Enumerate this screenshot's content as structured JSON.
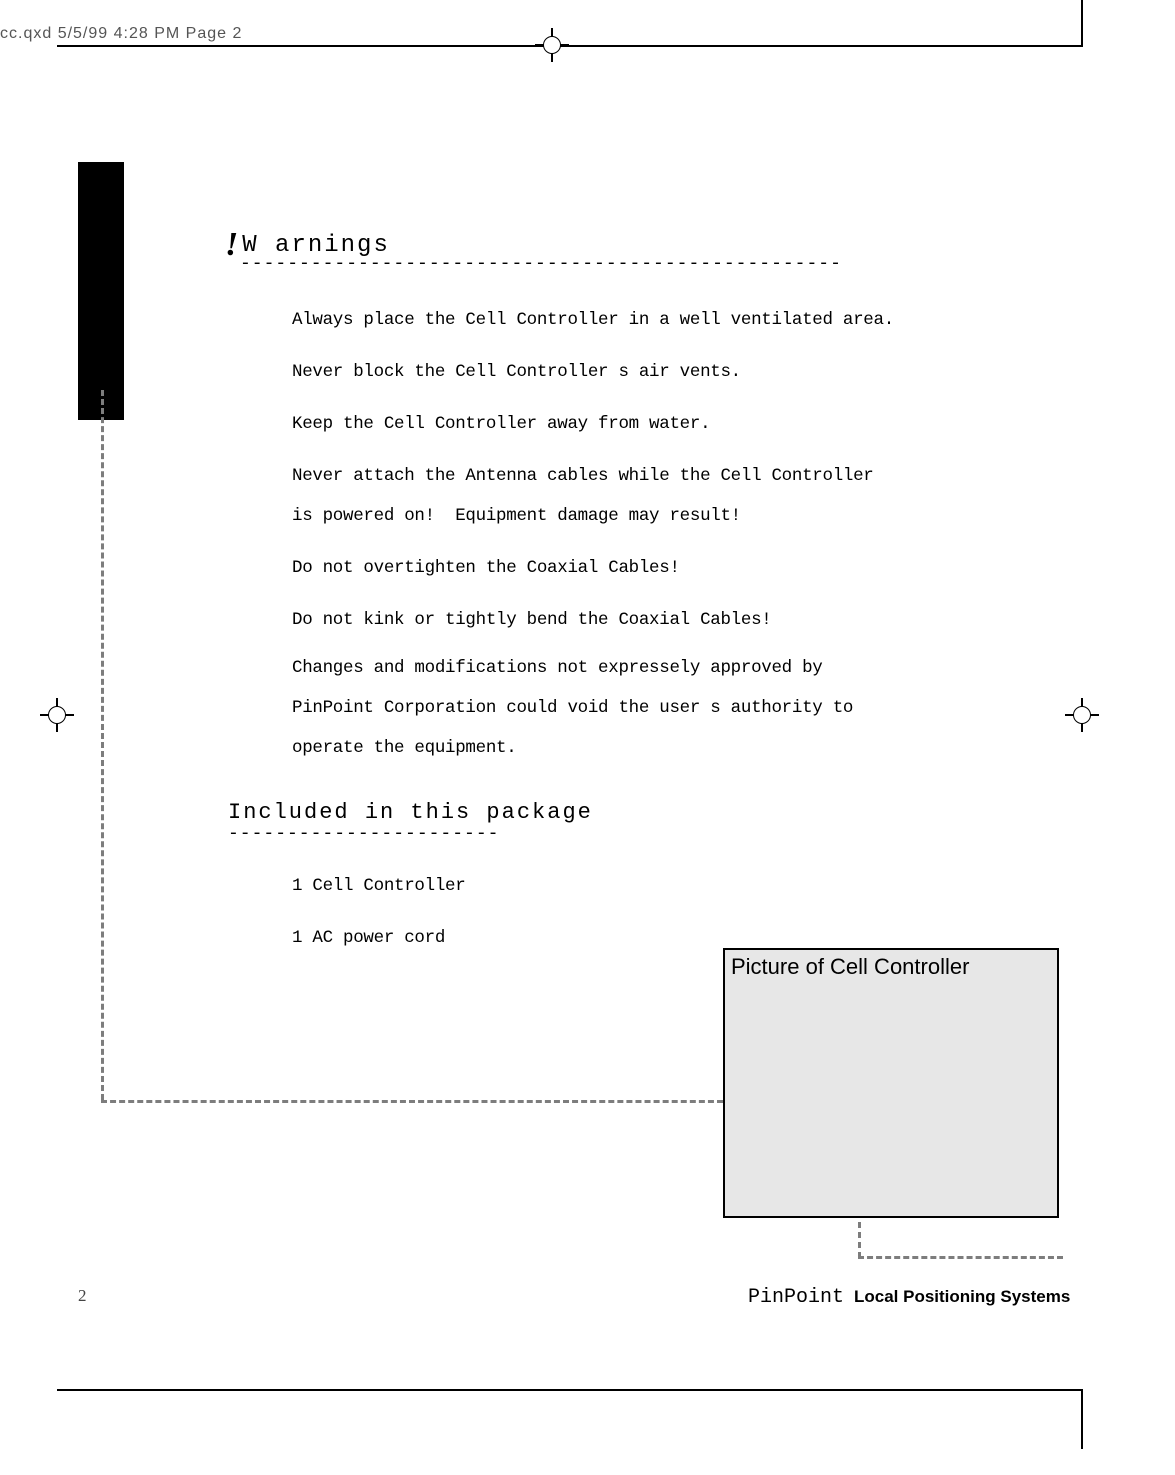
{
  "header": {
    "slug": "cc.qxd  5/5/99  4:28 PM  Page 2"
  },
  "warnings": {
    "heading": "W arnings",
    "dashes": "---------------------------------------------------",
    "lines": {
      "l1": "Always place the Cell Controller in a well ventilated area.",
      "l2": "Never block the Cell Controller s air vents.",
      "l3": "Keep the Cell Controller away from water.",
      "l4": "Never attach the Antenna cables while the Cell Controller\nis powered on!  Equipment damage may result!",
      "l5": "Do not overtighten the Coaxial Cables!",
      "l6": "Do not kink or tightly bend the Coaxial Cables!",
      "l7": "Changes and modifications not expressely approved by\nPinPoint Corporation could void the user s authority to\noperate the equipment."
    }
  },
  "included": {
    "heading": "Included in this package",
    "dashes": "-----------------------",
    "items": {
      "i1": "1 Cell Controller",
      "i2": "1 AC power cord"
    }
  },
  "picture": {
    "label": "Picture of Cell Controller"
  },
  "footer": {
    "page": "2",
    "brand": "PinPoint",
    "tag": "Local Positioning Systems"
  },
  "colors": {
    "dashed": "#7d7d7d",
    "picture_bg": "#e7e7e7",
    "text": "#000000"
  }
}
